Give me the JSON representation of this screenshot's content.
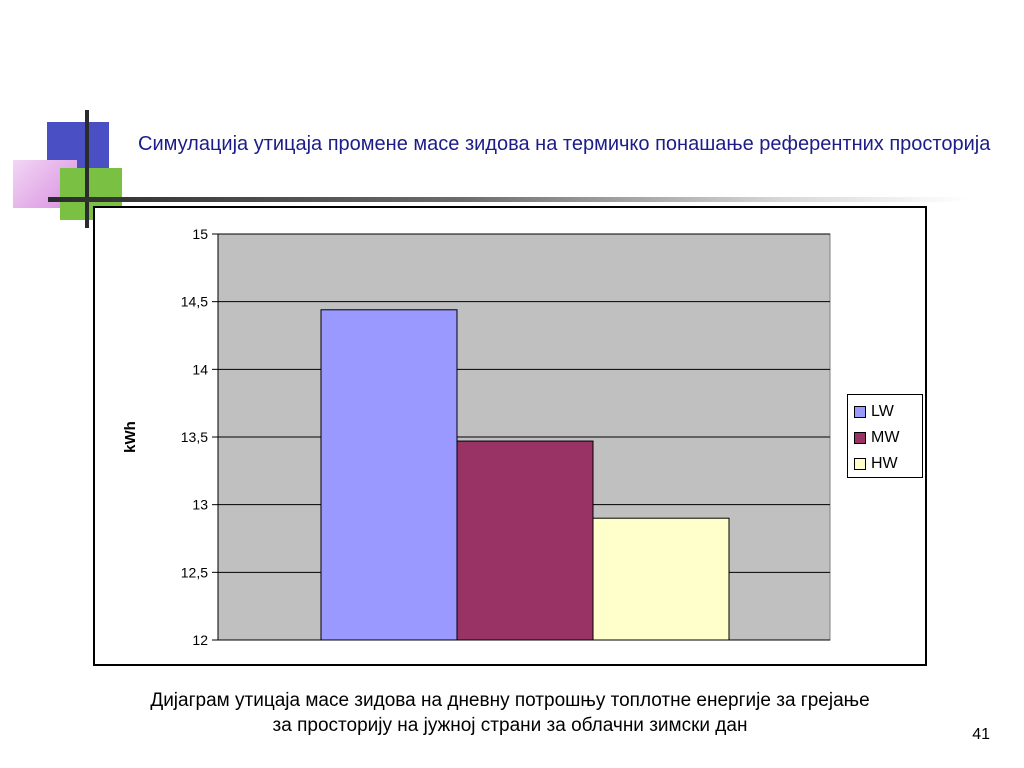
{
  "slide": {
    "title": "Симулација утицаја промене масе зидова на термичко понашање референтних просторија",
    "caption_line1": "Дијаграм утицаја масе зидова на дневну потрошњу топлотне енергије за грејање",
    "caption_line2": "за просторију на јужној страни за облачни зимски дан",
    "page_number": "41"
  },
  "chart_data": {
    "type": "bar",
    "title": "",
    "xlabel": "",
    "ylabel": "kWh",
    "ylim": [
      12,
      15
    ],
    "yticks": [
      12,
      12.5,
      13,
      13.5,
      14,
      14.5,
      15
    ],
    "ytick_labels": [
      "12",
      "12,5",
      "13",
      "13,5",
      "14",
      "14,5",
      "15"
    ],
    "categories": [
      ""
    ],
    "series": [
      {
        "name": "LW",
        "values": [
          14.44
        ],
        "color": "#9999ff"
      },
      {
        "name": "MW",
        "values": [
          13.47
        ],
        "color": "#993366"
      },
      {
        "name": "HW",
        "values": [
          12.9
        ],
        "color": "#ffffcc"
      }
    ],
    "plot_background": "#c0c0c0",
    "grid": true,
    "legend_position": "right"
  }
}
